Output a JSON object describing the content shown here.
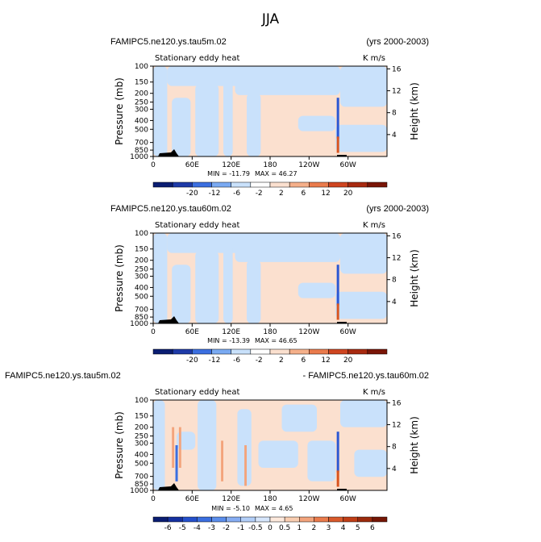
{
  "figure": {
    "title": "JJA"
  },
  "panels": [
    {
      "title_left": "FAMIPC5.ne120.ys.tau5m.02",
      "title_right": "(yrs 2000-2003)",
      "subtitle_left": "Stationary eddy heat",
      "subtitle_right": "K m/s",
      "min_label": "MIN = -11.79",
      "max_label": "MAX = 46.27",
      "colorbar_labels": [
        "-20",
        "-12",
        "-6",
        "-2",
        "2",
        "6",
        "12",
        "20"
      ]
    },
    {
      "title_left": "FAMIPC5.ne120.ys.tau60m.02",
      "title_right": "(yrs 2000-2003)",
      "subtitle_left": "Stationary eddy heat",
      "subtitle_right": "K m/s",
      "min_label": "MIN = -13.39",
      "max_label": "MAX = 46.65",
      "colorbar_labels": [
        "-20",
        "-12",
        "-6",
        "-2",
        "2",
        "6",
        "12",
        "20"
      ]
    },
    {
      "title_left": "FAMIPC5.ne120.ys.tau5m.02",
      "title_right": "- FAMIPC5.ne120.ys.tau60m.02",
      "subtitle_left": "Stationary eddy heat",
      "subtitle_right": "K m/s",
      "min_label": "MIN = -5.10",
      "max_label": "MAX = 4.65",
      "colorbar_labels": [
        "-6",
        "-5",
        "-4",
        "-3",
        "-2",
        "-1",
        "-0.5",
        "0",
        "0.5",
        "1",
        "2",
        "3",
        "4",
        "5",
        "6"
      ]
    }
  ],
  "chart_data": [
    {
      "type": "heatmap",
      "title": "FAMIPC5.ne120.ys.tau5m.02",
      "variable": "Stationary eddy heat",
      "units": "K m/s",
      "period": "(yrs 2000-2003)",
      "ylabel": "Pressure (mb)",
      "ylabel_right": "Height (km)",
      "x_ticks": [
        "0",
        "60E",
        "120E",
        "180",
        "120W",
        "60W"
      ],
      "y_ticks": [
        "100",
        "150",
        "200",
        "250",
        "300",
        "400",
        "500",
        "700",
        "850",
        "1000"
      ],
      "y_ticks_right": [
        "4",
        "8",
        "12",
        "16"
      ],
      "min": -11.79,
      "max": 46.27,
      "contour_levels": [
        -20,
        -12,
        -6,
        -2,
        2,
        6,
        12,
        20
      ]
    },
    {
      "type": "heatmap",
      "title": "FAMIPC5.ne120.ys.tau60m.02",
      "variable": "Stationary eddy heat",
      "units": "K m/s",
      "period": "(yrs 2000-2003)",
      "ylabel": "Pressure (mb)",
      "ylabel_right": "Height (km)",
      "x_ticks": [
        "0",
        "60E",
        "120E",
        "180",
        "120W",
        "60W"
      ],
      "y_ticks": [
        "100",
        "150",
        "200",
        "250",
        "300",
        "400",
        "500",
        "700",
        "850",
        "1000"
      ],
      "y_ticks_right": [
        "4",
        "8",
        "12",
        "16"
      ],
      "min": -13.39,
      "max": 46.65,
      "contour_levels": [
        -20,
        -12,
        -6,
        -2,
        2,
        6,
        12,
        20
      ]
    },
    {
      "type": "heatmap",
      "title": "FAMIPC5.ne120.ys.tau5m.02 - FAMIPC5.ne120.ys.tau60m.02",
      "variable": "Stationary eddy heat",
      "units": "K m/s",
      "ylabel": "Pressure (mb)",
      "ylabel_right": "Height (km)",
      "x_ticks": [
        "0",
        "60E",
        "120E",
        "180",
        "120W",
        "60W"
      ],
      "y_ticks": [
        "100",
        "150",
        "200",
        "250",
        "300",
        "400",
        "500",
        "700",
        "850",
        "1000"
      ],
      "y_ticks_right": [
        "4",
        "8",
        "12",
        "16"
      ],
      "min": -5.1,
      "max": 4.65,
      "contour_levels": [
        -6,
        -5,
        -4,
        -3,
        -2,
        -1,
        -0.5,
        0,
        0.5,
        1,
        2,
        3,
        4,
        5,
        6
      ]
    }
  ],
  "colors": {
    "positive_light": "#fbe0cf",
    "negative_light": "#c9e1fb",
    "strong_positive": "#d9541f",
    "strong_negative": "#2c58d3",
    "terrain": "#000000",
    "colorbar_8": [
      "#0a1d72",
      "#1e3aa8",
      "#3b6fe0",
      "#7aaaf2",
      "#c9e1fb",
      "#ffffff",
      "#fbe0cf",
      "#f5b08a",
      "#ea7b4c",
      "#cf4520",
      "#a82a10",
      "#7a1507"
    ],
    "colorbar_15": [
      "#0a1d72",
      "#1531a0",
      "#2450cc",
      "#3b6fe0",
      "#5b8eec",
      "#86adf3",
      "#b2cef8",
      "#d6e6fc",
      "#fde9dc",
      "#f9cdb1",
      "#f3a47c",
      "#ea7b4c",
      "#d95a2b",
      "#c03e16",
      "#9c2a0c",
      "#751605"
    ]
  }
}
